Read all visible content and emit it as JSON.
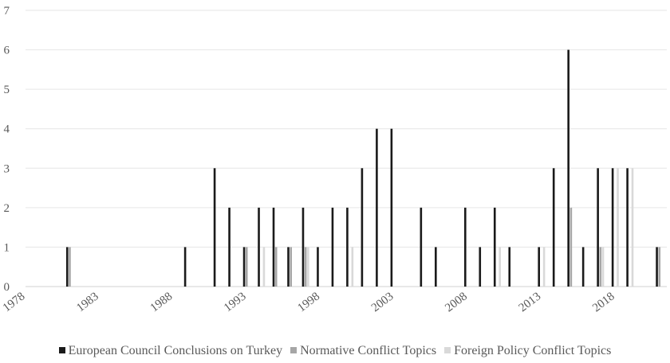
{
  "chart_data": {
    "type": "bar",
    "years": [
      1981,
      1982,
      1983,
      1984,
      1985,
      1986,
      1987,
      1988,
      1989,
      1990,
      1991,
      1992,
      1993,
      1994,
      1995,
      1996,
      1997,
      1998,
      1999,
      2000,
      2001,
      2002,
      2003,
      2004,
      2005,
      2006,
      2007,
      2008,
      2009,
      2010,
      2011,
      2012,
      2013,
      2014,
      2015,
      2016,
      2017,
      2018,
      2019,
      2020,
      2021
    ],
    "series": [
      {
        "name": "European Council Conclusions on Turkey",
        "color": "#1a1a1a",
        "values": [
          1,
          0,
          0,
          0,
          0,
          0,
          0,
          0,
          1,
          0,
          3,
          2,
          1,
          2,
          2,
          1,
          2,
          1,
          2,
          2,
          3,
          4,
          4,
          0,
          2,
          1,
          0,
          2,
          1,
          2,
          1,
          0,
          1,
          3,
          6,
          1,
          3,
          3,
          3,
          0,
          1
        ]
      },
      {
        "name": "Normative Conflict Topics",
        "color": "#a6a6a6",
        "values": [
          1,
          0,
          0,
          0,
          0,
          0,
          0,
          0,
          0,
          0,
          0,
          0,
          1,
          0,
          1,
          1,
          1,
          0,
          0,
          0,
          0,
          0,
          0,
          0,
          0,
          0,
          0,
          0,
          0,
          0,
          0,
          0,
          0,
          0,
          2,
          0,
          1,
          0,
          0,
          0,
          1
        ]
      },
      {
        "name": "Foreign Policy Conflict Topics",
        "color": "#d9d9d9",
        "values": [
          0,
          0,
          0,
          0,
          0,
          0,
          0,
          0,
          0,
          0,
          0,
          0,
          0,
          1,
          0,
          0,
          1,
          0,
          0,
          1,
          0,
          0,
          0,
          0,
          0,
          0,
          0,
          0,
          0,
          1,
          0,
          0,
          1,
          0,
          0,
          0,
          1,
          3,
          3,
          0,
          0
        ]
      }
    ],
    "x_range": [
      1978,
      2021.5
    ],
    "x_ticks": [
      1978,
      1983,
      1988,
      1993,
      1998,
      2003,
      2008,
      2013,
      2018
    ],
    "x_tick_labels": [
      "1978",
      "1983",
      "1988",
      "1993",
      "1998",
      "2003",
      "2008",
      "2013",
      "2018"
    ],
    "y_range": [
      0,
      7
    ],
    "y_ticks": [
      0,
      1,
      2,
      3,
      4,
      5,
      6,
      7
    ],
    "y_tick_labels": [
      "0",
      "1",
      "2",
      "3",
      "4",
      "5",
      "6",
      "7"
    ],
    "grid": true,
    "legend_position": "bottom",
    "title": "",
    "xlabel": "",
    "ylabel": ""
  }
}
